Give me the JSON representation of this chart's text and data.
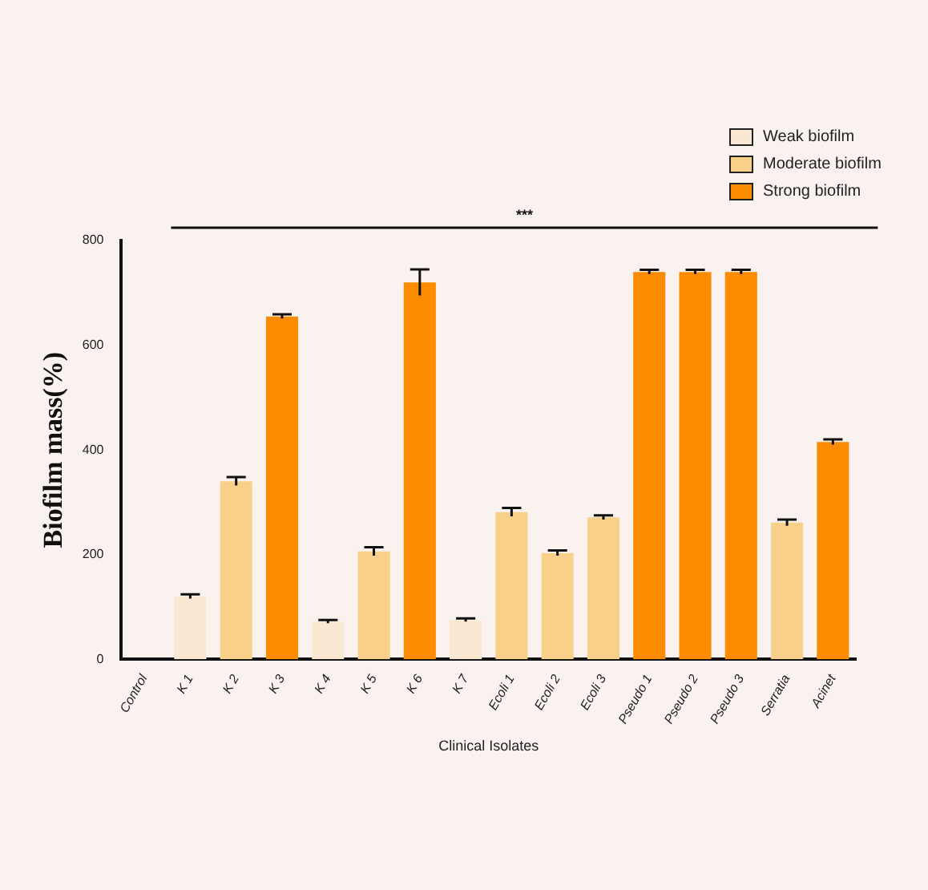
{
  "chart_data": {
    "type": "bar",
    "xlabel": "Clinical Isolates",
    "ylabel": "Biofilm mass(%)",
    "categories": [
      "Control",
      "K 1",
      "K 2",
      "K 3",
      "K 4",
      "K 5",
      "K 6",
      "K 7",
      "Ecoli 1",
      "Ecoli 2",
      "Ecoli 3",
      "Pseudo 1",
      "Pseudo 2",
      "Pseudo 3",
      "Serratia",
      "Acinet"
    ],
    "series": [
      {
        "name": "Weak biofilm",
        "color": "#fbe8d2",
        "values": [
          null,
          120,
          null,
          null,
          72,
          null,
          null,
          75,
          null,
          null,
          null,
          null,
          null,
          null,
          null,
          null
        ],
        "errors": [
          null,
          4,
          null,
          null,
          3,
          null,
          null,
          3,
          null,
          null,
          null,
          null,
          null,
          null,
          null,
          null
        ]
      },
      {
        "name": "Moderate biofilm",
        "color": "#f8d089",
        "values": [
          null,
          null,
          340,
          null,
          null,
          206,
          null,
          null,
          281,
          203,
          271,
          null,
          null,
          null,
          261,
          null
        ],
        "errors": [
          null,
          null,
          8,
          null,
          null,
          8,
          null,
          null,
          8,
          5,
          4,
          null,
          null,
          null,
          6,
          null
        ]
      },
      {
        "name": "Strong biofilm",
        "color": "#fb8c00",
        "values": [
          null,
          null,
          null,
          655,
          null,
          null,
          720,
          null,
          null,
          null,
          null,
          740,
          740,
          740,
          null,
          415
        ],
        "errors": [
          null,
          null,
          null,
          4,
          null,
          null,
          25,
          null,
          null,
          null,
          null,
          4,
          4,
          4,
          null,
          5
        ]
      }
    ],
    "ylim": [
      0,
      800
    ],
    "yticks": [
      0,
      200,
      400,
      600,
      800
    ],
    "grid": false,
    "legend": "top right",
    "annotations": [
      "***"
    ]
  }
}
